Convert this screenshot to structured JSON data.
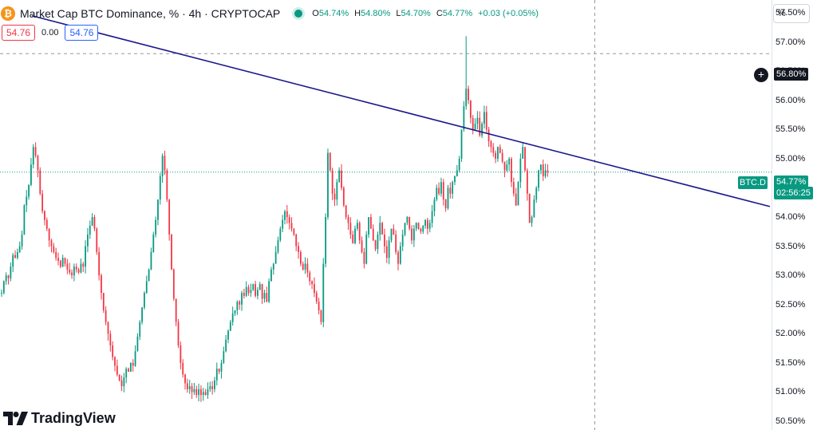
{
  "header": {
    "logo_glyph": "₿",
    "title": "Market Cap BTC Dominance, % · 4h · CRYPTOCAP",
    "ohlc": {
      "o_label": "O",
      "o": "54.74%",
      "h_label": "H",
      "h": "54.80%",
      "l_label": "L",
      "l": "54.70%",
      "c_label": "C",
      "c": "54.77%"
    },
    "change": "+0.03 (+0.05%)"
  },
  "quote": {
    "sell": "54.76",
    "spread": "0.00",
    "buy": "54.76"
  },
  "price_scale": {
    "unit_button": "%",
    "labels": [
      "57.50%",
      "57.00%",
      "56.50%",
      "56.00%",
      "55.50%",
      "55.00%",
      "54.50%",
      "54.00%",
      "53.50%",
      "53.00%",
      "52.50%",
      "52.00%",
      "51.50%",
      "51.00%",
      "50.50%"
    ],
    "crosshair_price": "56.80%",
    "symbol_tag": "BTC.D",
    "last_price": "54.77%",
    "countdown": "02:56:25"
  },
  "brand": {
    "name": "TradingView"
  },
  "icons": {
    "live": "live-status-icon",
    "add_alert": "plus-icon",
    "logo": "bitcoin-icon"
  },
  "colors": {
    "up": "#089981",
    "down": "#f23645",
    "trendline": "#1a1a8c",
    "crosshair": "#9598a1",
    "background": "#ffffff"
  },
  "chart_data": {
    "type": "candlestick",
    "title": "Market Cap BTC Dominance, % · 4h · CRYPTOCAP",
    "interval": "4h",
    "unit": "%",
    "ylim": [
      50.35,
      57.72
    ],
    "grid": false,
    "last": 54.77,
    "crosshair_value": 56.8,
    "series": [
      {
        "name": "BTC.D",
        "close": [
          52.7,
          52.9,
          53.0,
          52.95,
          53.15,
          53.35,
          53.3,
          53.4,
          53.5,
          53.7,
          54.2,
          54.35,
          54.55,
          54.9,
          55.2,
          55.05,
          54.8,
          54.4,
          54.1,
          53.95,
          53.8,
          53.6,
          53.5,
          53.4,
          53.3,
          53.25,
          53.15,
          53.3,
          53.2,
          53.1,
          53.05,
          53.0,
          53.15,
          53.1,
          53.05,
          53.2,
          53.15,
          53.5,
          53.7,
          53.85,
          54.0,
          53.8,
          53.4,
          53.0,
          52.7,
          52.4,
          52.2,
          52.0,
          51.8,
          51.6,
          51.45,
          51.3,
          51.2,
          51.1,
          51.25,
          51.4,
          51.35,
          51.5,
          51.45,
          51.7,
          51.95,
          52.2,
          52.45,
          52.7,
          52.9,
          53.1,
          53.4,
          53.7,
          53.95,
          54.3,
          54.7,
          55.05,
          54.8,
          54.3,
          53.7,
          53.1,
          52.6,
          52.2,
          51.8,
          51.5,
          51.3,
          51.15,
          51.05,
          51.1,
          51.0,
          51.05,
          50.95,
          51.05,
          50.95,
          51.0,
          50.95,
          51.05,
          51.1,
          51.05,
          51.2,
          51.4,
          51.35,
          51.5,
          51.7,
          51.9,
          52.05,
          52.2,
          52.35,
          52.4,
          52.55,
          52.5,
          52.7,
          52.65,
          52.8,
          52.7,
          52.75,
          52.85,
          52.65,
          52.75,
          52.85,
          52.6,
          52.7,
          52.55,
          52.9,
          53.1,
          53.2,
          53.4,
          53.6,
          53.8,
          53.95,
          54.1,
          54.0,
          53.9,
          53.8,
          53.7,
          53.5,
          53.4,
          53.2,
          53.1,
          53.2,
          53.05,
          52.9,
          52.85,
          52.7,
          52.55,
          52.4,
          52.2,
          53.2,
          54.0,
          55.1,
          54.8,
          54.4,
          54.3,
          54.6,
          54.8,
          54.5,
          54.2,
          54.0,
          53.9,
          53.7,
          53.55,
          53.8,
          53.9,
          53.6,
          53.4,
          53.2,
          53.7,
          54.0,
          53.8,
          53.6,
          53.45,
          53.7,
          53.9,
          53.7,
          53.5,
          53.3,
          53.6,
          53.8,
          53.7,
          53.4,
          53.2,
          53.5,
          53.7,
          53.9,
          54.0,
          53.8,
          53.6,
          53.8,
          53.9,
          53.8,
          53.75,
          53.85,
          53.95,
          53.8,
          53.9,
          54.1,
          54.3,
          54.5,
          54.4,
          54.6,
          54.3,
          54.15,
          54.5,
          54.4,
          54.6,
          54.7,
          54.8,
          55.0,
          55.5,
          55.9,
          56.2,
          56.0,
          55.7,
          55.5,
          55.6,
          55.7,
          55.4,
          55.6,
          55.8,
          55.5,
          55.3,
          55.2,
          55.1,
          55.0,
          55.2,
          55.1,
          54.95,
          54.8,
          54.9,
          55.0,
          54.6,
          54.4,
          54.2,
          54.6,
          55.0,
          55.2,
          54.8,
          54.4,
          53.9,
          54.0,
          54.3,
          54.5,
          54.8,
          54.9,
          54.7,
          54.8,
          54.77
        ]
      }
    ],
    "high": 57.1,
    "low": 50.9,
    "trendline": {
      "name": "",
      "points": [
        [
          0,
          57.45
        ],
        [
          260,
          54.18
        ]
      ]
    }
  }
}
